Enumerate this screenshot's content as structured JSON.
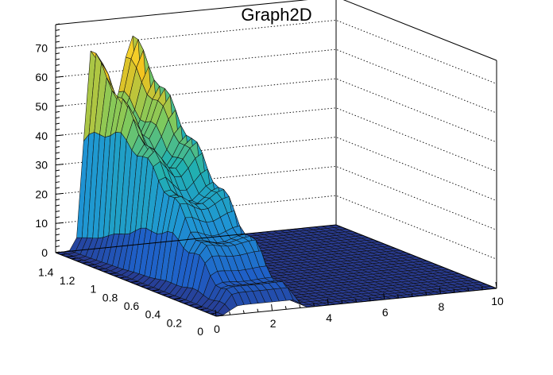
{
  "chart_data": {
    "type": "surface",
    "title": "Graph2D",
    "xlabel": "",
    "ylabel": "",
    "zlabel": "",
    "xlim": [
      0,
      10
    ],
    "ylim": [
      0,
      1.5
    ],
    "zlim": [
      0,
      78
    ],
    "x_ticks": [
      "0",
      "2",
      "4",
      "6",
      "8",
      "10"
    ],
    "y_ticks": [
      "0",
      "0.2",
      "0.4",
      "0.6",
      "0.8",
      "1",
      "1.2",
      "1.4"
    ],
    "z_ticks": [
      "0",
      "10",
      "20",
      "30",
      "40",
      "50",
      "60",
      "70"
    ],
    "z_max": 75,
    "ridge": {
      "x_start": [
        0.5,
        3.0
      ],
      "x_end": [
        1.0,
        3.0
      ],
      "z_at_y_min": 3,
      "z_at_y_max": 75
    },
    "grid": {
      "x_steps": 40,
      "y_steps": 30
    },
    "colormap": "viridis-like",
    "colors": {
      "low": "#2a3a8f",
      "mid_low": "#1f6fd6",
      "mid": "#1fb0b0",
      "mid_high": "#7dc95e",
      "high": "#f2c11d",
      "top": "#f7e03a"
    },
    "grid_lines": true
  }
}
